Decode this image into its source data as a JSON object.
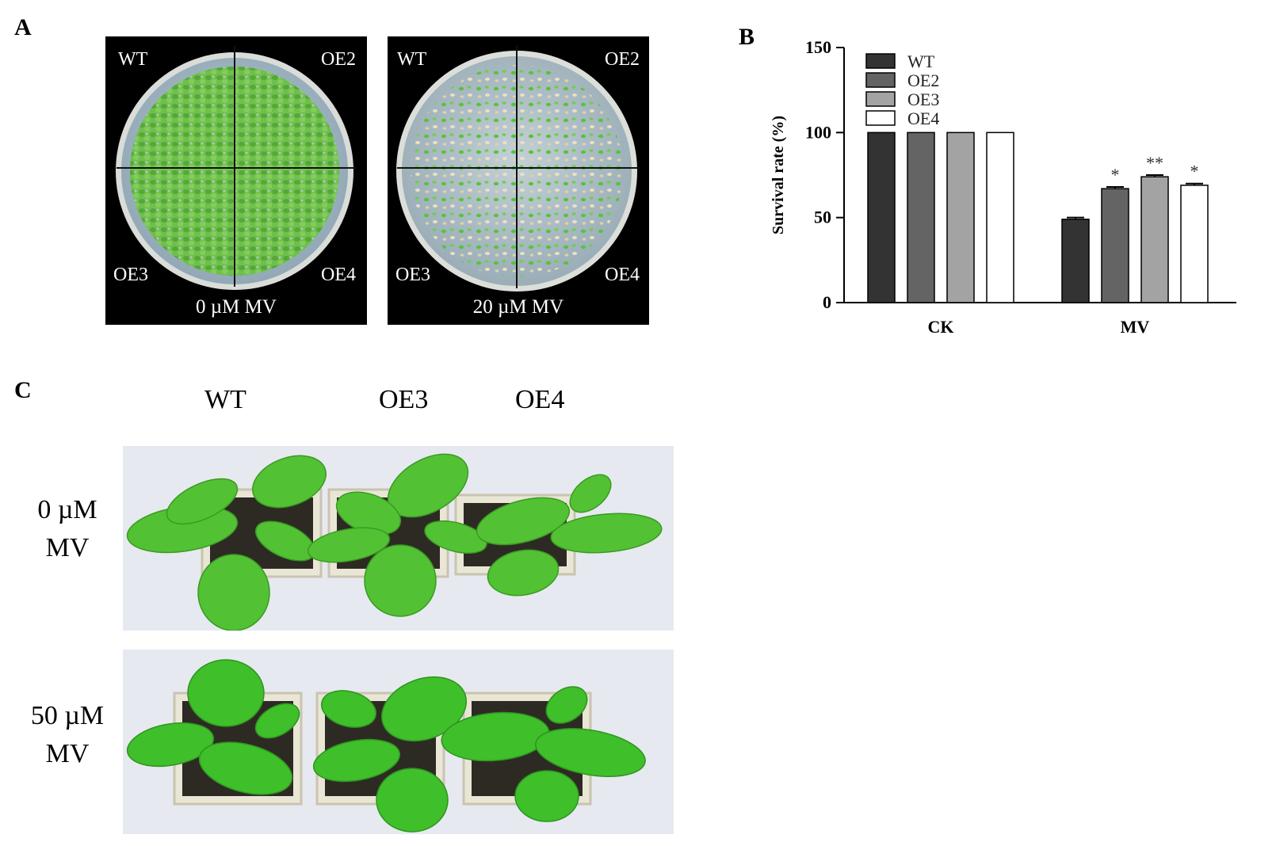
{
  "panels": {
    "a": {
      "letter": "A",
      "plates": [
        {
          "caption": "0 µM MV",
          "labels": {
            "tl": "WT",
            "tr": "OE2",
            "bl": "OE3",
            "br": "OE4"
          },
          "condition": "control"
        },
        {
          "caption": "20 µM MV",
          "labels": {
            "tl": "WT",
            "tr": "OE2",
            "bl": "OE3",
            "br": "OE4"
          },
          "condition": "stress"
        }
      ]
    },
    "b": {
      "letter": "B"
    },
    "c": {
      "letter": "C",
      "column_labels": [
        "WT",
        "OE3",
        "OE4"
      ],
      "rows": [
        {
          "line1": "0 µM",
          "line2": "MV"
        },
        {
          "line1": "50 µM",
          "line2": "MV"
        }
      ]
    }
  },
  "chart_data": {
    "type": "bar",
    "ylabel": "Survival rate (%)",
    "ylim": [
      0,
      150
    ],
    "yticks": [
      0,
      50,
      100,
      150
    ],
    "categories": [
      "CK",
      "MV"
    ],
    "legend_position": "top-left",
    "series": [
      {
        "name": "WT",
        "values": [
          100,
          49
        ],
        "error": [
          0,
          1
        ],
        "sig": [
          "",
          ""
        ],
        "color": "#333333"
      },
      {
        "name": "OE2",
        "values": [
          100,
          67
        ],
        "error": [
          0,
          1
        ],
        "sig": [
          "",
          "*"
        ],
        "color": "#646464"
      },
      {
        "name": "OE3",
        "values": [
          100,
          74
        ],
        "error": [
          0,
          1
        ],
        "sig": [
          "",
          "**"
        ],
        "color": "#a3a3a3"
      },
      {
        "name": "OE4",
        "values": [
          100,
          69
        ],
        "error": [
          0,
          1
        ],
        "sig": [
          "",
          "*"
        ],
        "color": "#ffffff"
      }
    ]
  }
}
